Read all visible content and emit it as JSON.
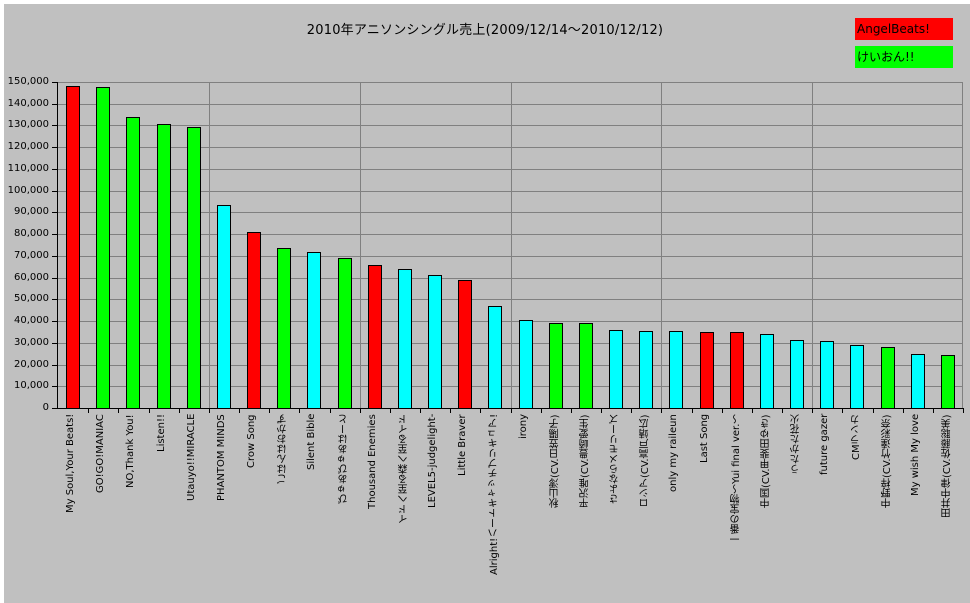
{
  "chart_data": {
    "type": "bar",
    "title": "2010年アニソンシングル売上(2009/12/14～2010/12/12)",
    "xlabel": "",
    "ylabel": "",
    "ylim": [
      0,
      150000
    ],
    "y_ticks": [
      "0",
      "10,000",
      "20,000",
      "30,000",
      "40,000",
      "50,000",
      "60,000",
      "70,000",
      "80,000",
      "90,000",
      "100,000",
      "110,000",
      "120,000",
      "130,000",
      "140,000",
      "150,000"
    ],
    "grid": true,
    "legend_position": "top-right",
    "legend": [
      {
        "label": "AngelBeats!",
        "color": "#ff0000"
      },
      {
        "label": "けいおん!!",
        "color": "#00ff00"
      }
    ],
    "other_color": "#00ffff",
    "categories": [
      "My Soul,Your Beats!",
      "GO!GO!MANIAC",
      "NO,Thank You!",
      "Listen!!",
      "Utauyo!!MIRACLE",
      "PHANTOM MINDS",
      "Crow Song",
      "ごはんはおかず",
      "Silent Bible",
      "ぴゅあぴゅあはーと",
      "Thousand Enemies",
      "イドへ至る森へ至るイド",
      "LEVEL5-judgelight-",
      "Little Braver",
      "Alright!ハートキャッチプリキュア!",
      "irony",
      "秋山澪(CV.日笠陽子)",
      "平沢唯(CV.豊崎愛生)",
      "さよならメモリーズ",
      "ロシア(CV.高戸靖広)",
      "only my raileun",
      "Last Song",
      "一番の宝物～Yui final ver.～",
      "中国(CV.甲斐田ゆき)",
      "うたかた花火",
      "future gazer",
      "CMランカ",
      "中野梓(CV.竹達彩奈)",
      "My wish My love",
      "田井中律(CV.佐藤聡美)"
    ],
    "values": [
      148000,
      147500,
      134000,
      130500,
      129500,
      93500,
      81000,
      73500,
      72000,
      69000,
      66000,
      64000,
      61000,
      59000,
      47000,
      40500,
      39000,
      39000,
      36000,
      35500,
      35200,
      35000,
      34800,
      34000,
      31500,
      31000,
      28800,
      28200,
      25000,
      24500
    ],
    "series_membership": [
      "AngelBeats!",
      "けいおん!!",
      "けいおん!!",
      "けいおん!!",
      "けいおん!!",
      "other",
      "AngelBeats!",
      "けいおん!!",
      "other",
      "けいおん!!",
      "AngelBeats!",
      "other",
      "other",
      "AngelBeats!",
      "other",
      "other",
      "けいおん!!",
      "けいおん!!",
      "other",
      "other",
      "other",
      "AngelBeats!",
      "AngelBeats!",
      "other",
      "other",
      "other",
      "other",
      "けいおん!!",
      "other",
      "けいおん!!"
    ]
  },
  "colors": {
    "background": "#c0c0c0",
    "grid": "#808080",
    "angelbeats": "#ff0000",
    "keion": "#00ff00",
    "other": "#00ffff"
  }
}
